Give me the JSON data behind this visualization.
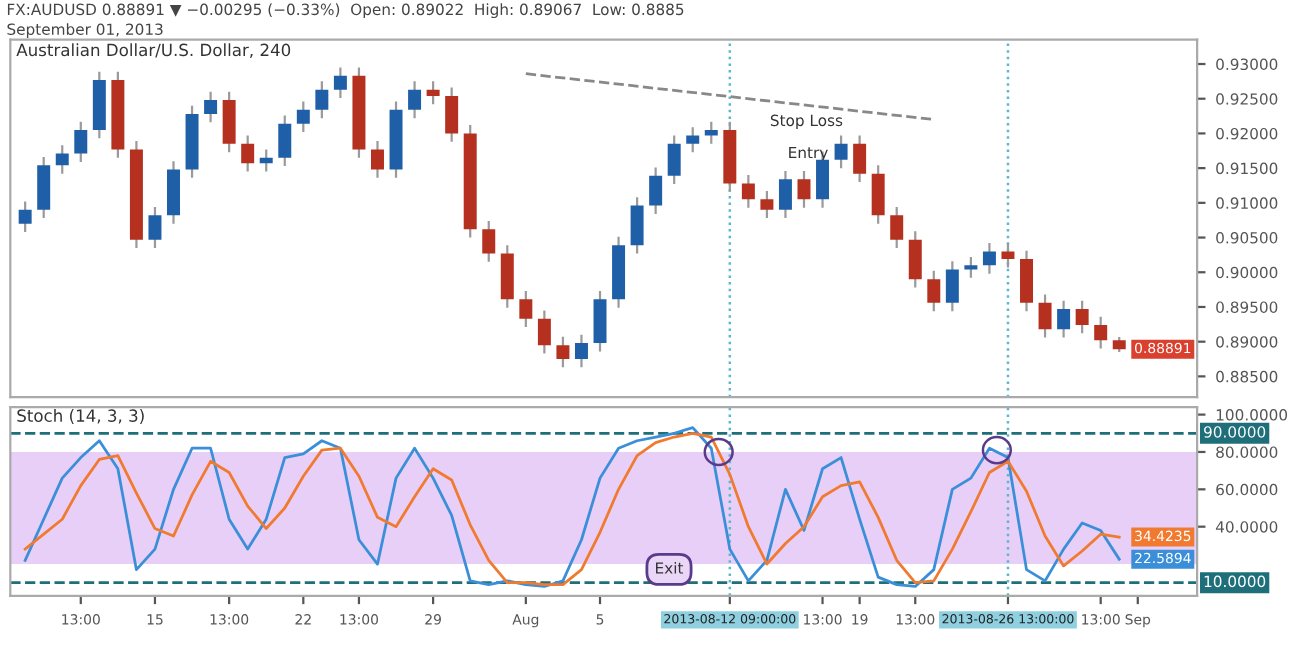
{
  "chart_data": [
    {
      "type": "candlestick",
      "title": "Australian Dollar/U.S. Dollar, 240",
      "annotations": [
        "FX:AUDUSD 0.88891 ▼ −0.00295 (−0.33%)  Open: 0.89022  High: 0.89067  Low: 0.8885",
        "September 01, 2013",
        "Stop Loss",
        "Entry",
        "0.88891"
      ],
      "categories": [
        null,
        null,
        null,
        null,
        null,
        null,
        null,
        null,
        null,
        null,
        null,
        null,
        null,
        null,
        null,
        null,
        null,
        null,
        null,
        null,
        null,
        null,
        null,
        null,
        null,
        null,
        null,
        null,
        null,
        null,
        null,
        null,
        null,
        null,
        null,
        null,
        null,
        null,
        null,
        null,
        null,
        null,
        null,
        null,
        null,
        null,
        null,
        null,
        null,
        null,
        null,
        null,
        null,
        null,
        null,
        null,
        null,
        null,
        null,
        null,
        null
      ],
      "ohlc": [
        [
          0.907,
          0.9102,
          0.9058,
          0.909
        ],
        [
          0.909,
          0.9166,
          0.9078,
          0.9154
        ],
        [
          0.9154,
          0.9183,
          0.9142,
          0.9171
        ],
        [
          0.9171,
          0.9217,
          0.9159,
          0.9205
        ],
        [
          0.9205,
          0.9289,
          0.9193,
          0.9277
        ],
        [
          0.9277,
          0.9289,
          0.9165,
          0.9177
        ],
        [
          0.9177,
          0.9189,
          0.9035,
          0.9047
        ],
        [
          0.9047,
          0.9094,
          0.9035,
          0.9082
        ],
        [
          0.9082,
          0.916,
          0.907,
          0.9148
        ],
        [
          0.9148,
          0.924,
          0.9136,
          0.9228
        ],
        [
          0.9228,
          0.926,
          0.9216,
          0.9248
        ],
        [
          0.9248,
          0.926,
          0.9173,
          0.9185
        ],
        [
          0.9185,
          0.9197,
          0.9145,
          0.9157
        ],
        [
          0.9157,
          0.9177,
          0.9145,
          0.9165
        ],
        [
          0.9165,
          0.9226,
          0.9153,
          0.9214
        ],
        [
          0.9214,
          0.9246,
          0.9202,
          0.9234
        ],
        [
          0.9234,
          0.9275,
          0.9222,
          0.9263
        ],
        [
          0.9263,
          0.9295,
          0.9251,
          0.9283
        ],
        [
          0.9283,
          0.9295,
          0.9165,
          0.9177
        ],
        [
          0.9177,
          0.9189,
          0.9136,
          0.9148
        ],
        [
          0.9148,
          0.9246,
          0.9136,
          0.9234
        ],
        [
          0.9234,
          0.9275,
          0.9222,
          0.9263
        ],
        [
          0.9263,
          0.9275,
          0.9242,
          0.9254
        ],
        [
          0.9254,
          0.9266,
          0.9188,
          0.92
        ],
        [
          0.92,
          0.9212,
          0.905,
          0.9062
        ],
        [
          0.9062,
          0.9074,
          0.9015,
          0.9027
        ],
        [
          0.9027,
          0.9039,
          0.8949,
          0.8961
        ],
        [
          0.8961,
          0.8973,
          0.8921,
          0.8933
        ],
        [
          0.8933,
          0.8945,
          0.8883,
          0.8895
        ],
        [
          0.8895,
          0.8907,
          0.8863,
          0.8875
        ],
        [
          0.8875,
          0.891,
          0.8863,
          0.8898
        ],
        [
          0.8898,
          0.8973,
          0.8886,
          0.8961
        ],
        [
          0.8961,
          0.9051,
          0.8949,
          0.9039
        ],
        [
          0.9039,
          0.9108,
          0.9027,
          0.9096
        ],
        [
          0.9096,
          0.9151,
          0.9084,
          0.9139
        ],
        [
          0.9139,
          0.9197,
          0.9127,
          0.9185
        ],
        [
          0.9185,
          0.9209,
          0.9173,
          0.9197
        ],
        [
          0.9197,
          0.9217,
          0.9185,
          0.9205
        ],
        [
          0.9205,
          0.9217,
          0.9116,
          0.9128
        ],
        [
          0.9128,
          0.914,
          0.9093,
          0.9105
        ],
        [
          0.9105,
          0.9117,
          0.9078,
          0.909
        ],
        [
          0.909,
          0.9146,
          0.9078,
          0.9134
        ],
        [
          0.9134,
          0.9146,
          0.9093,
          0.9105
        ],
        [
          0.9105,
          0.9174,
          0.9093,
          0.9162
        ],
        [
          0.9162,
          0.9197,
          0.915,
          0.9185
        ],
        [
          0.9185,
          0.9197,
          0.913,
          0.9142
        ],
        [
          0.9142,
          0.9154,
          0.907,
          0.9082
        ],
        [
          0.9082,
          0.9094,
          0.9035,
          0.9047
        ],
        [
          0.9047,
          0.9059,
          0.8978,
          0.899
        ],
        [
          0.899,
          0.9002,
          0.8944,
          0.8956
        ],
        [
          0.8956,
          0.9016,
          0.8944,
          0.9004
        ],
        [
          0.9004,
          0.9022,
          0.8992,
          0.901
        ],
        [
          0.901,
          0.9042,
          0.8998,
          0.903
        ],
        [
          0.903,
          0.9042,
          0.9007,
          0.9019
        ],
        [
          0.9019,
          0.9031,
          0.8944,
          0.8956
        ],
        [
          0.8956,
          0.8968,
          0.8906,
          0.8918
        ],
        [
          0.8918,
          0.8959,
          0.8906,
          0.8947
        ],
        [
          0.8947,
          0.8959,
          0.8912,
          0.8924
        ],
        [
          0.8924,
          0.8936,
          0.889,
          0.8902
        ],
        [
          0.89022,
          0.89067,
          0.8885,
          0.88891
        ],
        null
      ],
      "colors": [
        "#1f5fa8",
        "#1f5fa8",
        "#1f5fa8",
        "#1f5fa8",
        "#1f5fa8",
        "#b5301f",
        "#b5301f",
        "#1f5fa8",
        "#1f5fa8",
        "#1f5fa8",
        "#1f5fa8",
        "#b5301f",
        "#b5301f",
        "#1f5fa8",
        "#1f5fa8",
        "#1f5fa8",
        "#1f5fa8",
        "#1f5fa8",
        "#b5301f",
        "#b5301f",
        "#1f5fa8",
        "#1f5fa8",
        "#b5301f",
        "#b5301f",
        "#b5301f",
        "#b5301f",
        "#b5301f",
        "#b5301f",
        "#b5301f",
        "#b5301f",
        "#1f5fa8",
        "#1f5fa8",
        "#1f5fa8",
        "#1f5fa8",
        "#1f5fa8",
        "#1f5fa8",
        "#1f5fa8",
        "#1f5fa8",
        "#b5301f",
        "#b5301f",
        "#b5301f",
        "#1f5fa8",
        "#b5301f",
        "#1f5fa8",
        "#1f5fa8",
        "#b5301f",
        "#b5301f",
        "#b5301f",
        "#b5301f",
        "#b5301f",
        "#1f5fa8",
        "#1f5fa8",
        "#1f5fa8",
        "#b5301f",
        "#b5301f",
        "#b5301f",
        "#1f5fa8",
        "#b5301f",
        "#b5301f",
        "#b5301f",
        null
      ],
      "series": [
        {
          "type": "line",
          "values": [
            null,
            null,
            null,
            null,
            null,
            null,
            null,
            null,
            null,
            null,
            null,
            null,
            null,
            null,
            null,
            null,
            null,
            null,
            null,
            null,
            null,
            null,
            null,
            null,
            null,
            null,
            null,
            0.9286,
            null,
            null,
            null,
            null,
            null,
            null,
            null,
            null,
            null,
            null,
            null,
            null,
            null,
            null,
            null,
            null,
            null,
            null,
            null,
            null,
            null,
            0.922,
            null,
            null,
            null,
            null,
            null,
            null,
            null,
            null,
            null,
            null,
            null
          ],
          "color": "#888888",
          "line_style": "dashed"
        }
      ],
      "ylim": [
        0.882,
        0.9335
      ],
      "yticks": [
        {
          "value": 0.885,
          "label": "0.88500"
        },
        {
          "value": 0.89,
          "label": "0.89000"
        },
        {
          "value": 0.895,
          "label": "0.89500"
        },
        {
          "value": 0.9,
          "label": "0.90000"
        },
        {
          "value": 0.905,
          "label": "0.90500"
        },
        {
          "value": 0.91,
          "label": "0.91000"
        },
        {
          "value": 0.915,
          "label": "0.91500"
        },
        {
          "value": 0.92,
          "label": "0.92000"
        },
        {
          "value": 0.925,
          "label": "0.92500"
        },
        {
          "value": 0.93,
          "label": "0.93000"
        }
      ],
      "tick_labels": "y",
      "grid": false
    },
    {
      "type": "line",
      "title": "Stoch (14, 3, 3)",
      "categories": [
        null,
        null,
        null,
        "13:00",
        null,
        null,
        null,
        "15",
        null,
        null,
        null,
        "13:00",
        null,
        null,
        null,
        "22",
        null,
        null,
        "13:00",
        null,
        null,
        null,
        "29",
        null,
        null,
        null,
        null,
        "Aug",
        null,
        null,
        null,
        "5",
        null,
        null,
        null,
        null,
        null,
        null,
        "2013-08-12 09:00:00",
        null,
        null,
        null,
        null,
        "13:00",
        null,
        "19",
        null,
        null,
        "13:00",
        null,
        null,
        null,
        null,
        "2013-08-26 13:00:00",
        null,
        null,
        null,
        null,
        "13:00",
        null,
        "Sep"
      ],
      "series": [
        {
          "color": "#3a8fd8",
          "values": [
            22,
            44,
            66,
            77,
            86,
            71,
            17,
            28,
            60,
            82,
            82,
            44,
            28,
            44,
            77,
            79,
            86,
            82,
            33,
            20,
            66,
            82,
            66,
            46,
            11,
            9,
            11,
            9,
            8,
            11,
            33,
            66,
            82,
            86,
            88,
            90,
            93,
            82,
            28,
            11,
            22,
            60,
            38,
            71,
            77,
            44,
            13,
            9,
            8,
            17,
            60,
            66,
            82,
            77,
            17,
            11,
            28,
            42,
            38,
            22.5894,
            null
          ]
        },
        {
          "color": "#f07a30",
          "values": [
            28,
            36,
            44,
            62,
            76,
            78,
            58,
            39,
            35,
            57,
            75,
            69,
            51,
            39,
            50,
            67,
            81,
            82,
            67,
            45,
            40,
            56,
            71,
            65,
            41,
            22,
            10,
            10,
            9,
            9,
            17,
            37,
            60,
            78,
            85,
            88,
            90,
            88,
            68,
            40,
            20,
            31,
            40,
            56,
            62,
            64,
            45,
            22,
            10,
            11,
            28,
            48,
            69,
            75,
            59,
            35,
            19,
            27,
            36,
            34.4235,
            null
          ]
        }
      ],
      "annotations": [
        "Exit",
        "34.4235",
        "22.5894"
      ],
      "ylim": [
        3,
        104
      ],
      "yticks": [
        {
          "value": 40,
          "label": "40.0000"
        },
        {
          "value": 60,
          "label": "60.0000"
        },
        {
          "value": 80,
          "label": "80.0000"
        },
        {
          "value": 100,
          "label": "100.0000"
        }
      ],
      "ref_lines": [
        {
          "axis": "y",
          "value": 90,
          "label": "90.0000",
          "color": "#1f6f7a",
          "line_style": "dashed"
        },
        {
          "axis": "y",
          "value": 10,
          "label": "10.0000",
          "color": "#1f6f7a",
          "line_style": "dashed"
        },
        {
          "axis": "x",
          "value": "2013-08-12 09:00:00",
          "color": "#5bb8d0",
          "line_style": "dotted"
        },
        {
          "axis": "x",
          "value": "2013-08-26 13:00:00",
          "color": "#5bb8d0",
          "line_style": "dotted"
        }
      ],
      "bands": [
        {
          "axis": "y",
          "from": 20,
          "to": 80,
          "color": "#e8cff7"
        }
      ],
      "grid": false
    }
  ]
}
